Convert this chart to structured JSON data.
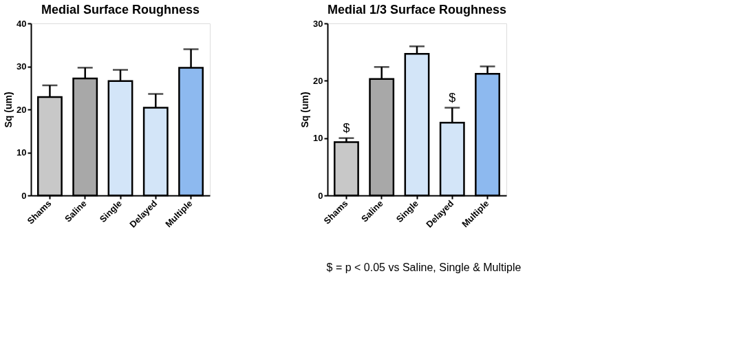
{
  "chart_data": [
    {
      "type": "bar",
      "title": "Medial Surface Roughness",
      "ylabel": "Sq (um)",
      "categories": [
        "Shams",
        "Saline",
        "Single",
        "Delayed",
        "Multiple"
      ],
      "values": [
        22.9,
        27.2,
        26.6,
        20.4,
        29.7
      ],
      "colors": [
        "#c8c8c8",
        "#a8a8a8",
        "#d3e5f8",
        "#d3e5f8",
        "#8db9ef"
      ],
      "errors": [
        [
          22.9,
          25.6
        ],
        [
          27.2,
          29.7
        ],
        [
          26.6,
          29.2
        ],
        [
          20.4,
          23.6
        ],
        [
          29.7,
          34.0
        ]
      ],
      "ylim": [
        0,
        40
      ],
      "yticks": [
        0,
        10,
        20,
        30,
        40
      ],
      "grid": false
    },
    {
      "type": "bar",
      "title": "Medial 1/3 Surface Roughness",
      "ylabel": "Sq (um)",
      "categories": [
        "Shams",
        "Saline",
        "Single",
        "Delayed",
        "Multiple"
      ],
      "values": [
        9.3,
        20.3,
        24.7,
        12.7,
        21.2
      ],
      "colors": [
        "#c8c8c8",
        "#a8a8a8",
        "#d3e5f8",
        "#d3e5f8",
        "#8db9ef"
      ],
      "errors": [
        [
          9.3,
          10.0
        ],
        [
          20.3,
          22.4
        ],
        [
          24.7,
          26.0
        ],
        [
          12.7,
          15.3
        ],
        [
          21.2,
          22.5
        ]
      ],
      "ylim": [
        0,
        30
      ],
      "yticks": [
        0,
        10,
        20,
        30
      ],
      "grid": false,
      "annotations": [
        {
          "text": "$",
          "x": "Shams",
          "y": 10.0
        },
        {
          "text": "$",
          "x": "Delayed",
          "y": 15.3
        },
        "$ = p < 0.05 vs Saline, Single &  Multiple"
      ]
    }
  ]
}
